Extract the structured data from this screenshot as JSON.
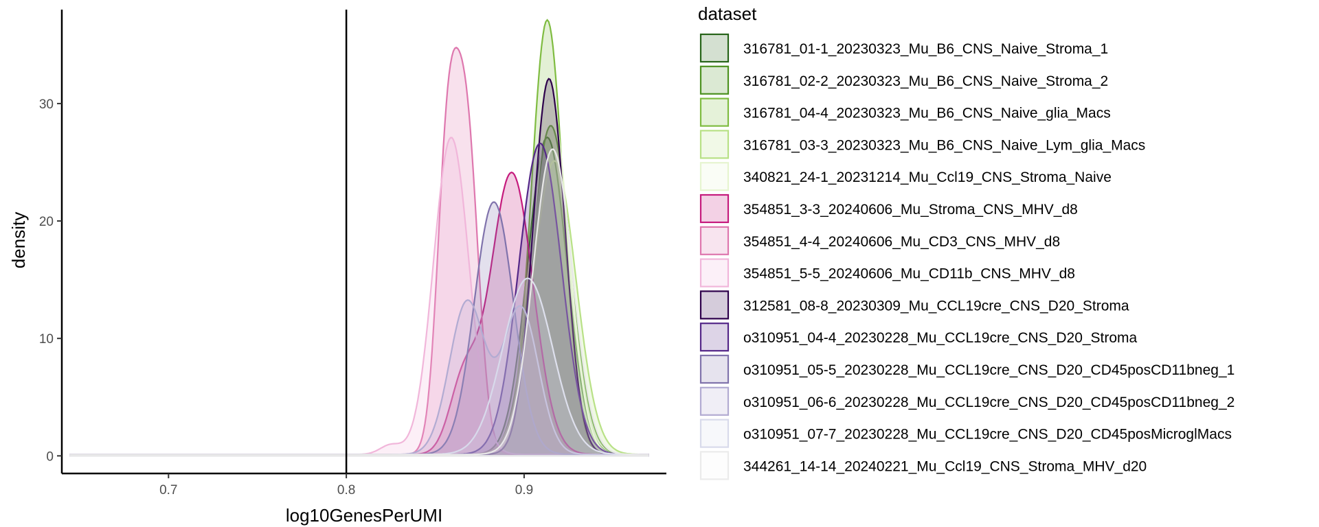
{
  "chart_data": {
    "type": "area",
    "xlabel": "log10GenesPerUMI",
    "ylabel": "density",
    "xlim": [
      0.64,
      0.98
    ],
    "ylim": [
      -1.5,
      38
    ],
    "x_ticks": [
      0.7,
      0.8,
      0.9
    ],
    "x_tick_labels": [
      "0.7",
      "0.8",
      "0.9"
    ],
    "y_ticks": [
      0,
      10,
      20,
      30
    ],
    "y_tick_labels": [
      "0",
      "10",
      "20",
      "30"
    ],
    "vline_x": 0.8,
    "grid": false,
    "legend": {
      "title": "dataset",
      "placement": "right"
    },
    "series": [
      {
        "name": "316781_01-1_20230323_Mu_B6_CNS_Naive_Stroma_1",
        "color": "#276419",
        "peaks": [
          [
            0.913,
            27,
            0.011
          ]
        ]
      },
      {
        "name": "316781_02-2_20230323_Mu_B6_CNS_Naive_Stroma_2",
        "color": "#4d9221",
        "peaks": [
          [
            0.915,
            28,
            0.011
          ]
        ]
      },
      {
        "name": "316781_04-4_20230323_Mu_B6_CNS_Naive_glia_Macs",
        "color": "#7fbc41",
        "peaks": [
          [
            0.913,
            37,
            0.009
          ]
        ]
      },
      {
        "name": "316781_03-3_20230323_Mu_B6_CNS_Naive_Lym_glia_Macs",
        "color": "#b8e186",
        "peaks": [
          [
            0.917,
            25,
            0.012
          ]
        ]
      },
      {
        "name": "340821_24-1_20231214_Mu_Ccl19_CNS_Stroma_Naive",
        "color": "#e6f5d0",
        "peaks": [
          [
            0.915,
            30,
            0.01
          ]
        ]
      },
      {
        "name": "354851_3-3_20240606_Mu_Stroma_CNS_MHV_d8",
        "color": "#c51b7d",
        "peaks": [
          [
            0.893,
            24,
            0.012
          ],
          [
            0.866,
            6,
            0.008
          ]
        ]
      },
      {
        "name": "354851_4-4_20240606_Mu_CD3_CNS_MHV_d8",
        "color": "#de77ae",
        "peaks": [
          [
            0.857,
            25,
            0.006
          ],
          [
            0.868,
            26,
            0.0065
          ]
        ]
      },
      {
        "name": "354851_5-5_20240606_Mu_CD11b_CNS_MHV_d8",
        "color": "#f1b6da",
        "peaks": [
          [
            0.859,
            27,
            0.01
          ],
          [
            0.825,
            0.8,
            0.006
          ]
        ]
      },
      {
        "name": "312581_08-8_20230309_Mu_CCL19cre_CNS_D20_Stroma",
        "color": "#2d004b",
        "peaks": [
          [
            0.914,
            32,
            0.009
          ]
        ]
      },
      {
        "name": "o310951_04-4_20230228_Mu_CCL19cre_CNS_D20_Stroma",
        "color": "#542788",
        "peaks": [
          [
            0.909,
            26.5,
            0.012
          ]
        ]
      },
      {
        "name": "o310951_05-5_20230228_Mu_CCL19cre_CNS_D20_CD45posCD11bneg_1",
        "color": "#8073ac",
        "peaks": [
          [
            0.883,
            21.5,
            0.011
          ]
        ]
      },
      {
        "name": "o310951_06-6_20230228_Mu_CCL19cre_CNS_D20_CD45posCD11bneg_2",
        "color": "#b2abd2",
        "peaks": [
          [
            0.868,
            13,
            0.01
          ],
          [
            0.898,
            12.5,
            0.01
          ]
        ]
      },
      {
        "name": "o310951_07-7_20230228_Mu_CCL19cre_CNS_D20_CD45posMicroglMacs",
        "color": "#d8daeb",
        "peaks": [
          [
            0.902,
            15,
            0.014
          ]
        ]
      },
      {
        "name": "344261_14-14_20240221_Mu_Ccl19_CNS_Stroma_MHV_d20",
        "color": "#f7f7f7",
        "peaks": [
          [
            0.916,
            26,
            0.011
          ]
        ]
      }
    ]
  }
}
